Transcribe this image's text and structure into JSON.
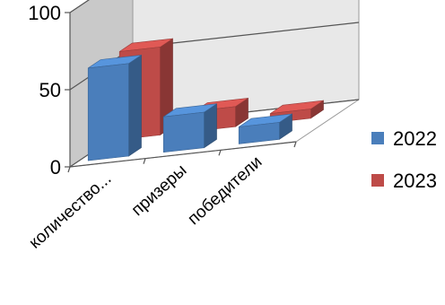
{
  "chart_data": {
    "type": "bar",
    "style": "3d-clustered-column",
    "categories": [
      "количество...",
      "призеры",
      "победители"
    ],
    "series": [
      {
        "name": "2022",
        "values": [
          60,
          23,
          11
        ]
      },
      {
        "name": "2023",
        "values": [
          57,
          13,
          6
        ]
      }
    ],
    "ylim": [
      0,
      100
    ],
    "yticks": [
      "0",
      "50",
      "100"
    ],
    "grid": true,
    "legend_position": "right",
    "colors": {
      "series_2022": "#4a7ebb",
      "series_2023": "#be4b48"
    }
  }
}
